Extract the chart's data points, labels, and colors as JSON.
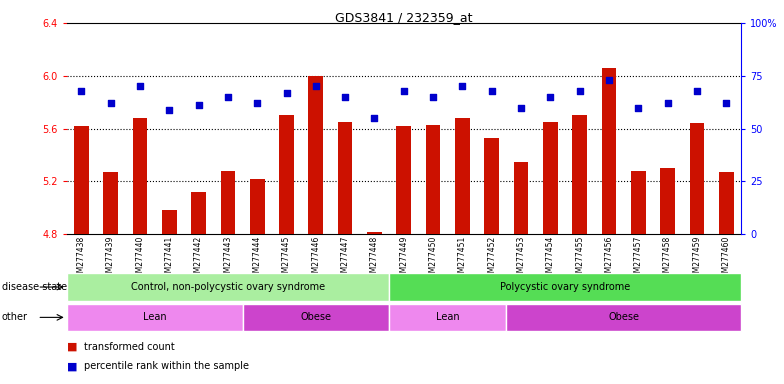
{
  "title": "GDS3841 / 232359_at",
  "samples": [
    "GSM277438",
    "GSM277439",
    "GSM277440",
    "GSM277441",
    "GSM277442",
    "GSM277443",
    "GSM277444",
    "GSM277445",
    "GSM277446",
    "GSM277447",
    "GSM277448",
    "GSM277449",
    "GSM277450",
    "GSM277451",
    "GSM277452",
    "GSM277453",
    "GSM277454",
    "GSM277455",
    "GSM277456",
    "GSM277457",
    "GSM277458",
    "GSM277459",
    "GSM277460"
  ],
  "red_values": [
    5.62,
    5.27,
    5.68,
    4.98,
    5.12,
    5.28,
    5.22,
    5.7,
    6.0,
    5.65,
    4.82,
    5.62,
    5.63,
    5.68,
    5.53,
    5.35,
    5.65,
    5.7,
    6.06,
    5.28,
    5.3,
    5.64,
    5.27
  ],
  "blue_values": [
    68,
    62,
    70,
    59,
    61,
    65,
    62,
    67,
    70,
    65,
    55,
    68,
    65,
    70,
    68,
    60,
    65,
    68,
    73,
    60,
    62,
    68,
    62
  ],
  "ylim_left": [
    4.8,
    6.4
  ],
  "ylim_right": [
    0,
    100
  ],
  "yticks_left": [
    4.8,
    5.2,
    5.6,
    6.0,
    6.4
  ],
  "yticks_right": [
    0,
    25,
    50,
    75,
    100
  ],
  "ytick_labels_right": [
    "0",
    "25",
    "50",
    "75",
    "100%"
  ],
  "disease_groups": [
    {
      "label": "Control, non-polycystic ovary syndrome",
      "start": 0,
      "end": 10,
      "color": "#aaeea0"
    },
    {
      "label": "Polycystic ovary syndrome",
      "start": 11,
      "end": 22,
      "color": "#55dd55"
    }
  ],
  "other_groups": [
    {
      "label": "Lean",
      "start": 0,
      "end": 5,
      "color": "#ee88ee"
    },
    {
      "label": "Obese",
      "start": 6,
      "end": 10,
      "color": "#cc44cc"
    },
    {
      "label": "Lean",
      "start": 11,
      "end": 14,
      "color": "#ee88ee"
    },
    {
      "label": "Obese",
      "start": 15,
      "end": 22,
      "color": "#cc44cc"
    }
  ],
  "bar_color": "#cc1100",
  "dot_color": "#0000cc",
  "legend_items": [
    "transformed count",
    "percentile rank within the sample"
  ],
  "grid_yticks": [
    5.2,
    5.6,
    6.0
  ],
  "label_fontsize": 7,
  "tick_fontsize": 7,
  "bar_width": 0.5
}
